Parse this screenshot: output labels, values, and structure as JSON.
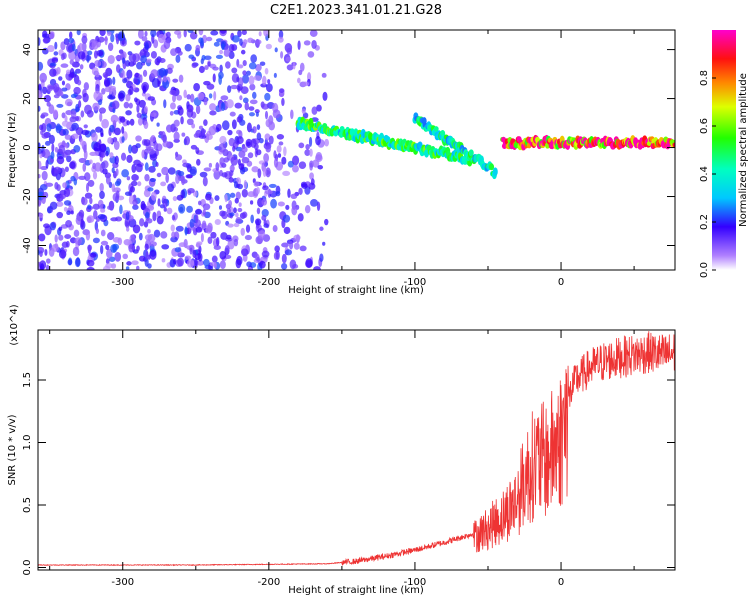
{
  "title": "C2E1.2023.341.01.21.G28",
  "chart_data": [
    {
      "type": "heatmap",
      "xlabel": "Height of straight line (km)",
      "ylabel": "Frequency (Hz)",
      "xlim": [
        -358,
        78
      ],
      "ylim": [
        -50,
        48
      ],
      "x_ticks": [
        "-300",
        "-200",
        "-100",
        "0"
      ],
      "x_tick_values": [
        -300,
        -200,
        -100,
        0
      ],
      "y_ticks": [
        "-40",
        "-20",
        "0",
        "20",
        "40"
      ],
      "y_tick_values": [
        -40,
        -20,
        0,
        20,
        40
      ],
      "colorbar": {
        "label": "Normalized spectral amplitude",
        "ticks": [
          "0.0",
          "0.2",
          "0.4",
          "0.6",
          "0.8"
        ],
        "tick_values": [
          0.0,
          0.2,
          0.4,
          0.6,
          0.8
        ],
        "range": [
          0,
          1
        ]
      },
      "features": [
        {
          "x_range": [
            -358,
            -160
          ],
          "y_range": [
            -50,
            48
          ],
          "amplitude": 0.1
        },
        {
          "x_range": [
            -180,
            -60
          ],
          "y_start": 10,
          "y_end": -5,
          "amplitude": 0.45
        },
        {
          "x_range": [
            -100,
            -45
          ],
          "y_start": 12,
          "y_end": -10,
          "amplitude": 0.4
        },
        {
          "x_range": [
            -40,
            78
          ],
          "y_start": 2,
          "y_end": 2,
          "amplitude": 0.85
        }
      ]
    },
    {
      "type": "line",
      "xlabel": "Height of straight line (km)",
      "ylabel": "SNR (10 * v/v)",
      "y_multiplier": "(x10^4)",
      "xlim": [
        -358,
        78
      ],
      "ylim": [
        -0.02,
        1.9
      ],
      "x_ticks": [
        "-300",
        "-200",
        "-100",
        "0"
      ],
      "x_tick_values": [
        -300,
        -200,
        -100,
        0
      ],
      "y_ticks": [
        "0.0",
        "0.5",
        "1.0",
        "1.5"
      ],
      "y_tick_values": [
        0.0,
        0.5,
        1.0,
        1.5
      ],
      "color": "#ee3333",
      "envelope_x": [
        -358,
        -250,
        -160,
        -140,
        -120,
        -100,
        -80,
        -60,
        -50,
        -40,
        -30,
        -25,
        -20,
        -15,
        -10,
        -5,
        0,
        5,
        10,
        20,
        30,
        40,
        50,
        60,
        70,
        78
      ],
      "envelope_y": [
        0.02,
        0.02,
        0.03,
        0.05,
        0.09,
        0.14,
        0.2,
        0.27,
        0.35,
        0.45,
        0.6,
        0.78,
        0.9,
        0.95,
        0.95,
        1.05,
        1.15,
        1.35,
        1.5,
        1.6,
        1.65,
        1.68,
        1.7,
        1.72,
        1.7,
        1.72
      ]
    }
  ]
}
